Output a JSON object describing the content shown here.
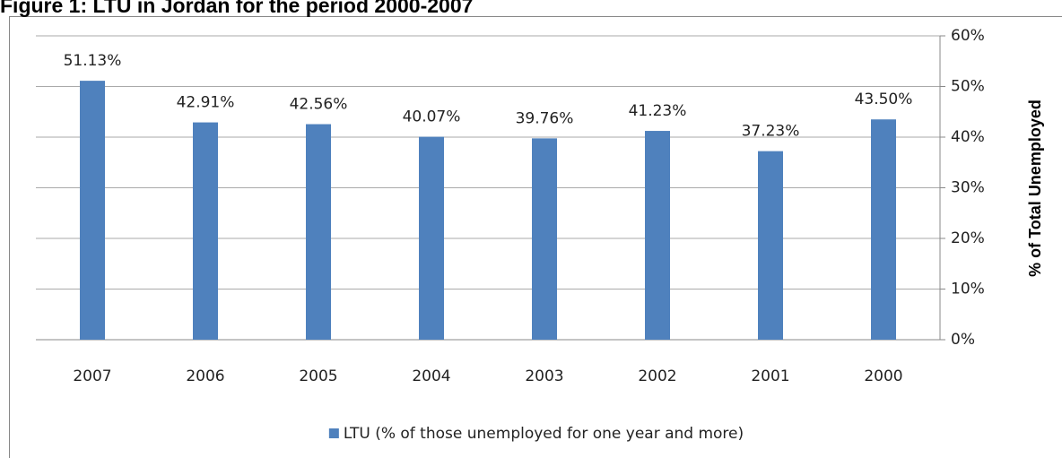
{
  "chart_data": {
    "type": "bar",
    "title": "Figure 1: LTU in Jordan for the period 2000-2007",
    "y_axis_label": "% of Total Unemployed",
    "categories": [
      "2007",
      "2006",
      "2005",
      "2004",
      "2003",
      "2002",
      "2001",
      "2000"
    ],
    "series": [
      {
        "name": "LTU (% of those unemployed for one year and more)",
        "color": "#4f81bd",
        "values": [
          51.13,
          42.91,
          42.56,
          40.07,
          39.76,
          41.23,
          37.23,
          43.5
        ],
        "value_labels": [
          "51.13%",
          "42.91%",
          "42.56%",
          "40.07%",
          "39.76%",
          "41.23%",
          "37.23%",
          "43.50%"
        ]
      }
    ],
    "ylim": [
      0,
      60
    ],
    "yticks": [
      {
        "value": 0,
        "label": "0%"
      },
      {
        "value": 10,
        "label": "10%"
      },
      {
        "value": 20,
        "label": "20%"
      },
      {
        "value": 30,
        "label": "30%"
      },
      {
        "value": 40,
        "label": "40%"
      },
      {
        "value": 50,
        "label": "50%"
      },
      {
        "value": 60,
        "label": "60%"
      }
    ],
    "grid": true,
    "legend": "bottom"
  }
}
